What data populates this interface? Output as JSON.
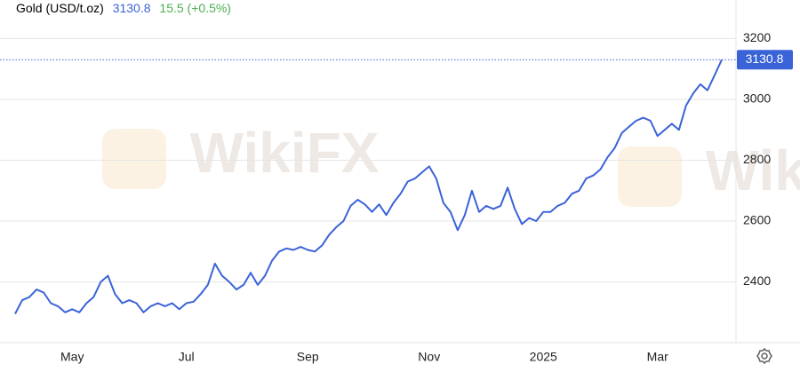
{
  "chart_data": {
    "type": "line",
    "title": "Gold (USD/t.oz)",
    "change": "15.5 (+0.5%)",
    "watermark": "WikiFX",
    "categories": [
      null,
      null,
      null,
      null,
      null,
      null,
      null,
      null,
      "May",
      null,
      null,
      null,
      null,
      null,
      null,
      null,
      null,
      null,
      null,
      null,
      null,
      null,
      null,
      null,
      "Jul",
      null,
      null,
      null,
      null,
      null,
      null,
      null,
      null,
      null,
      null,
      null,
      null,
      null,
      null,
      null,
      null,
      "Sep",
      null,
      null,
      null,
      null,
      null,
      null,
      null,
      null,
      null,
      null,
      null,
      null,
      null,
      null,
      null,
      null,
      "Nov",
      null,
      null,
      null,
      null,
      null,
      null,
      null,
      null,
      null,
      null,
      null,
      null,
      null,
      null,
      null,
      "2025",
      null,
      null,
      null,
      null,
      null,
      null,
      null,
      null,
      null,
      null,
      null,
      null,
      null,
      null,
      null,
      "Mar",
      null,
      null,
      null,
      null,
      null,
      null,
      null,
      null,
      null
    ],
    "series": [
      {
        "name": "Gold",
        "color": "#3a63d8",
        "values": [
          2295,
          2340,
          2350,
          2375,
          2365,
          2330,
          2320,
          2300,
          2310,
          2300,
          2330,
          2350,
          2400,
          2420,
          2360,
          2330,
          2340,
          2330,
          2300,
          2320,
          2330,
          2320,
          2330,
          2310,
          2330,
          2335,
          2360,
          2390,
          2460,
          2420,
          2400,
          2375,
          2390,
          2430,
          2390,
          2420,
          2470,
          2500,
          2510,
          2505,
          2515,
          2505,
          2500,
          2520,
          2555,
          2580,
          2600,
          2650,
          2670,
          2655,
          2630,
          2655,
          2620,
          2660,
          2690,
          2730,
          2740,
          2760,
          2780,
          2740,
          2660,
          2630,
          2570,
          2620,
          2700,
          2630,
          2650,
          2640,
          2650,
          2710,
          2640,
          2590,
          2610,
          2600,
          2630,
          2630,
          2650,
          2660,
          2690,
          2700,
          2740,
          2750,
          2770,
          2810,
          2840,
          2890,
          2910,
          2930,
          2940,
          2930,
          2880,
          2900,
          2920,
          2900,
          2980,
          3020,
          3050,
          3030,
          3080,
          3130.8
        ]
      }
    ],
    "ylim": [
      2200,
      3300
    ],
    "yticks": [
      2400,
      2600,
      2800,
      3000,
      3200
    ],
    "grid": true,
    "change_color": "#4caf50"
  }
}
